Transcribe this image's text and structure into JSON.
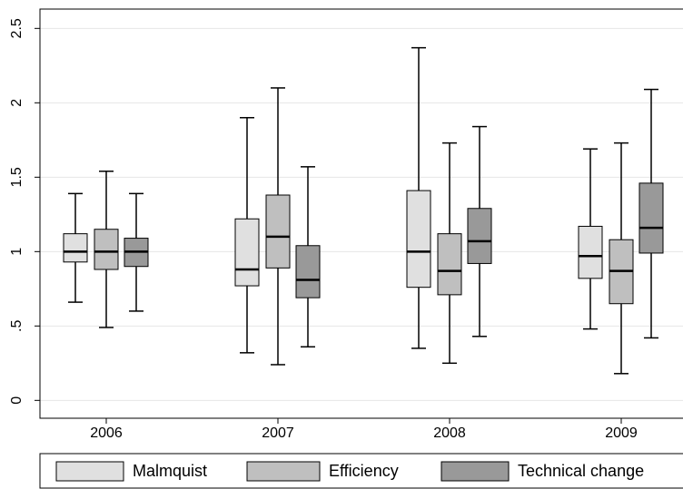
{
  "chart_data": {
    "type": "box",
    "categories": [
      "2006",
      "2007",
      "2008",
      "2009"
    ],
    "series": [
      {
        "name": "Malmquist",
        "color": "#e0e0e0",
        "min": [
          0.66,
          0.32,
          0.35,
          0.48
        ],
        "q1": [
          0.93,
          0.77,
          0.76,
          0.82
        ],
        "median": [
          1.0,
          0.88,
          1.0,
          0.97
        ],
        "q3": [
          1.12,
          1.22,
          1.41,
          1.17
        ],
        "max": [
          1.39,
          1.9,
          2.37,
          1.69
        ]
      },
      {
        "name": "Efficiency",
        "color": "#bfbfbf",
        "min": [
          0.49,
          0.24,
          0.25,
          0.18
        ],
        "q1": [
          0.88,
          0.89,
          0.71,
          0.65
        ],
        "median": [
          1.0,
          1.1,
          0.87,
          0.87
        ],
        "q3": [
          1.15,
          1.38,
          1.12,
          1.08
        ],
        "max": [
          1.54,
          2.1,
          1.73,
          1.73
        ]
      },
      {
        "name": "Technical change",
        "color": "#999999",
        "min": [
          0.6,
          0.36,
          0.43,
          0.42
        ],
        "q1": [
          0.9,
          0.69,
          0.92,
          0.99
        ],
        "median": [
          1.0,
          0.81,
          1.07,
          1.16
        ],
        "q3": [
          1.09,
          1.04,
          1.29,
          1.46
        ],
        "max": [
          1.39,
          1.57,
          1.84,
          2.09
        ]
      }
    ],
    "ylim": [
      -0.12,
      2.63
    ],
    "yticks": [
      0,
      {
        "value": 0.5,
        "label": ".5"
      },
      1,
      1.5,
      2,
      2.5
    ],
    "grid": true
  }
}
